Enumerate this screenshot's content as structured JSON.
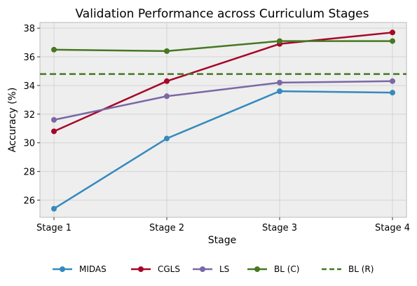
{
  "chart_data": {
    "type": "line",
    "title": "Validation Performance across Curriculum Stages",
    "xlabel": "Stage",
    "ylabel": "Accuracy (%)",
    "categories": [
      "Stage 1",
      "Stage 2",
      "Stage 3",
      "Stage 4"
    ],
    "ylim": [
      24.8,
      38.4
    ],
    "yticks": [
      26,
      28,
      30,
      32,
      34,
      36,
      38
    ],
    "grid": true,
    "legend_position": "bottom",
    "series": [
      {
        "name": "MIDAS",
        "values": [
          25.4,
          30.3,
          33.6,
          33.5
        ],
        "color": "#348abd",
        "style": "solid",
        "marker": "circle"
      },
      {
        "name": "CGLS",
        "values": [
          30.8,
          34.3,
          36.9,
          37.7
        ],
        "color": "#a60628",
        "style": "solid",
        "marker": "circle"
      },
      {
        "name": "LS",
        "values": [
          31.6,
          33.25,
          34.2,
          34.3
        ],
        "color": "#7a68a6",
        "style": "solid",
        "marker": "circle"
      },
      {
        "name": "BL (C)",
        "values": [
          36.5,
          36.4,
          37.1,
          37.1
        ],
        "color": "#467821",
        "style": "solid",
        "marker": "circle"
      },
      {
        "name": "BL (R)",
        "values": [
          34.8,
          34.8,
          34.8,
          34.8
        ],
        "color": "#467821",
        "style": "dashed",
        "marker": "none"
      }
    ],
    "colors": {
      "background": "#eeeeee",
      "grid": "#d4d4d4",
      "axis": "#bcbcbc"
    }
  }
}
